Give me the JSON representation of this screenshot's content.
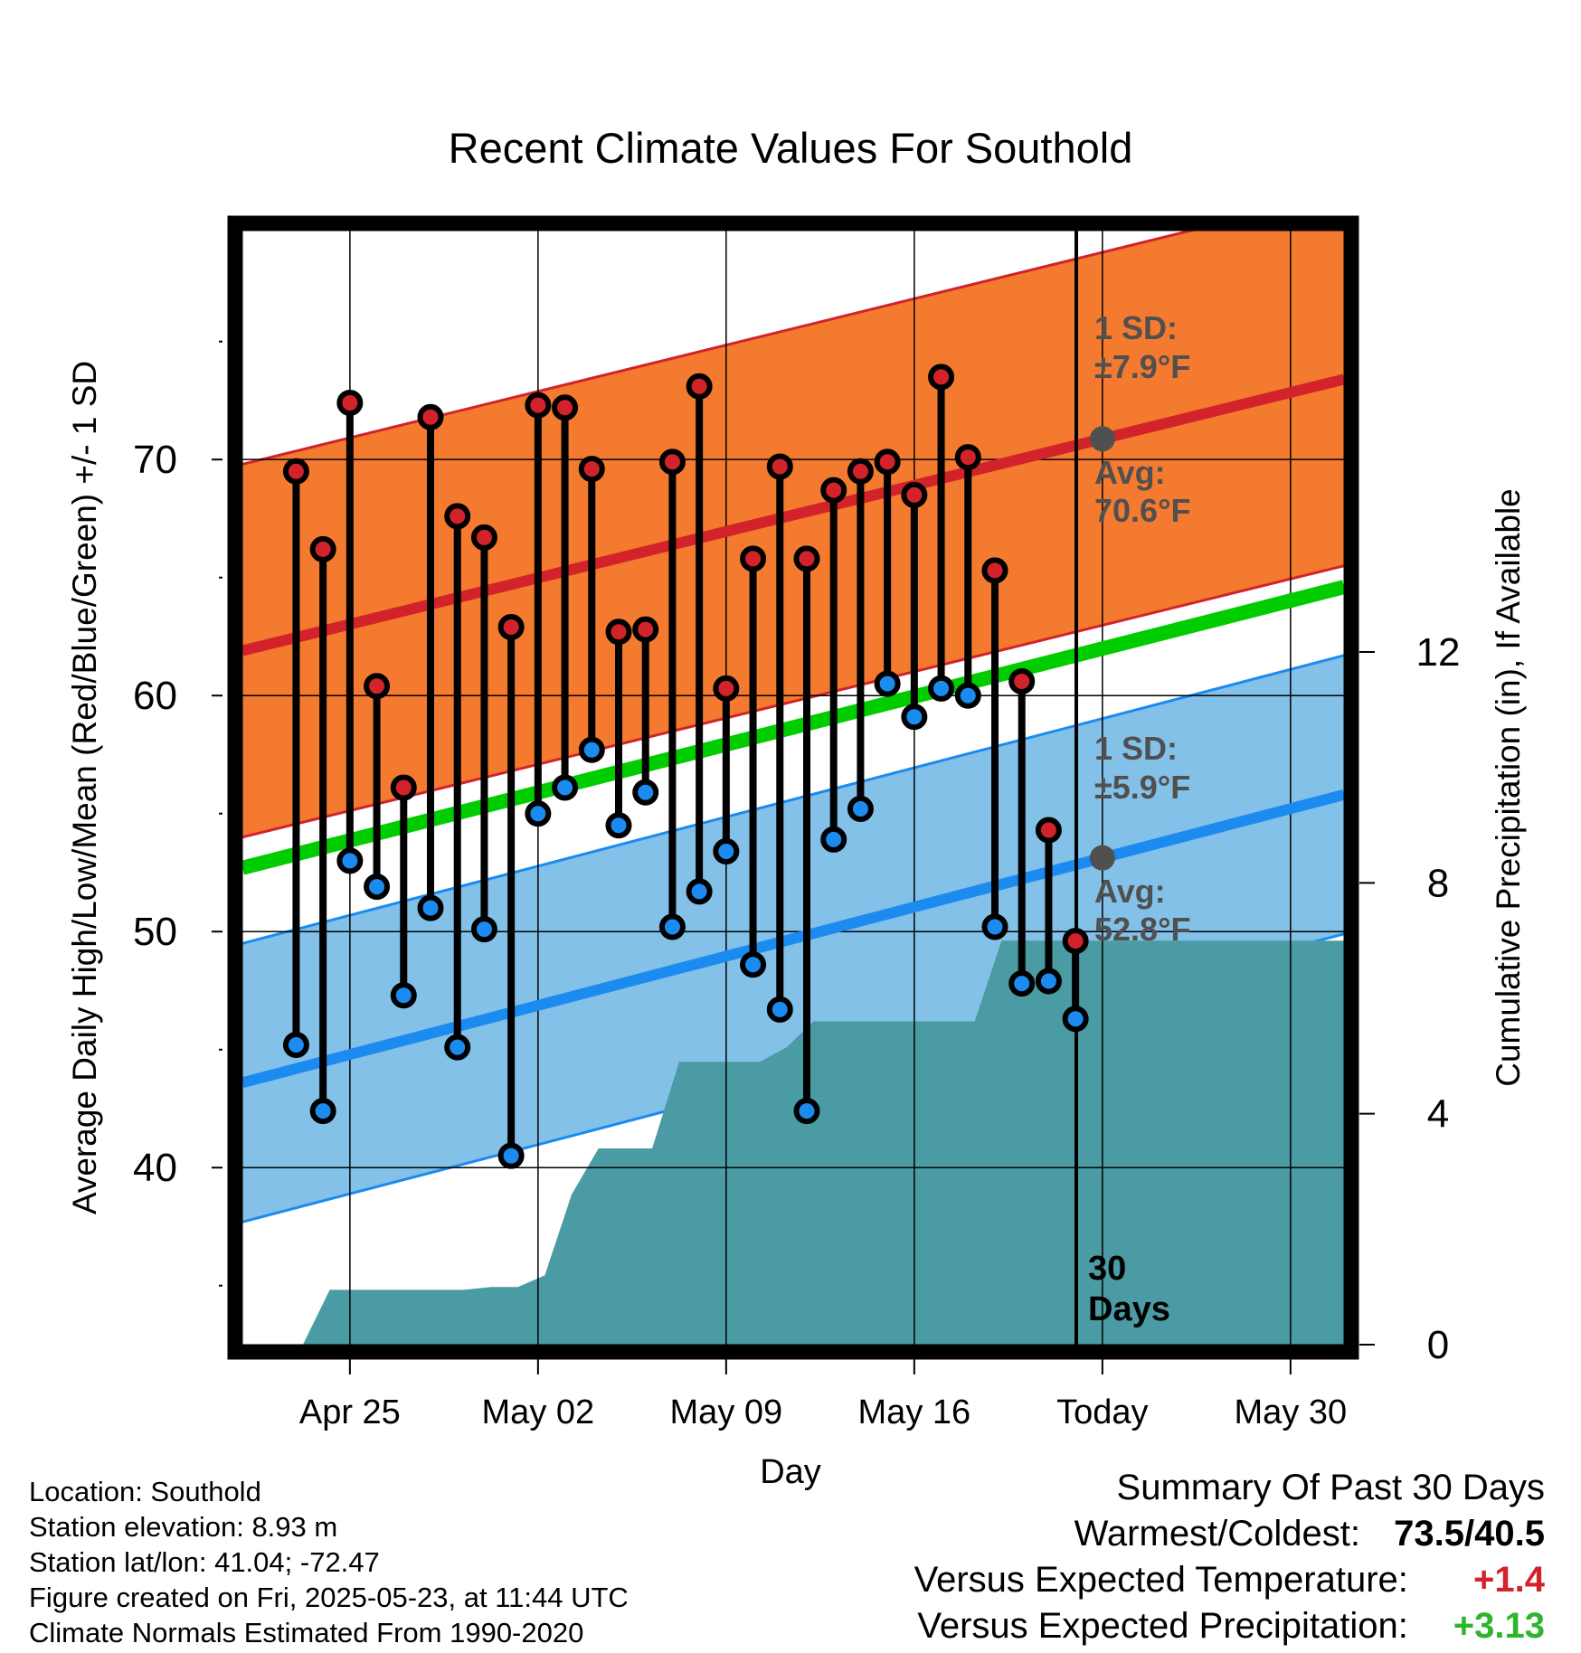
{
  "chart_data": {
    "type": "line",
    "title": "Recent Climate Values For Southold",
    "xlabel": "Day",
    "ylabel": "Average Daily High/Low/Mean (Red/Blue/Green) +/- 1 SD",
    "y2label": "Cumulative Precipitation (in), If Available",
    "x_tick_labels": [
      "Apr 25",
      "May 02",
      "May 09",
      "May 16",
      "Today",
      "May 30"
    ],
    "y_ticks": [
      "40",
      "50",
      "60",
      "70"
    ],
    "y2_ticks": [
      "0",
      "4",
      "8",
      "12"
    ],
    "ylim": [
      32.5,
      79.7
    ],
    "y2lim": [
      0,
      19.3
    ],
    "grid": true,
    "today_label": [
      "30",
      "Days"
    ],
    "high_band": {
      "sd_label": [
        "1 SD:",
        "±7.9°F"
      ],
      "avg_label": [
        "Avg:",
        "70.6°F"
      ],
      "color": "#F47A2F",
      "line_color": "#D2232A",
      "mean_start": 61.9,
      "mean_end": 73.4,
      "sd": 7.9
    },
    "low_band": {
      "sd_label": [
        "1 SD:",
        "±5.9°F"
      ],
      "avg_label": [
        "Avg:",
        "52.8°F"
      ],
      "color": "#84C1E8",
      "line_color": "#1B8BF0",
      "mean_start": 43.6,
      "mean_end": 55.8,
      "sd": 5.9
    },
    "mean_line": {
      "color": "#00CC00",
      "start": 52.7,
      "end": 64.6
    },
    "daily": {
      "dates": [
        "Apr 23",
        "Apr 24",
        "Apr 25",
        "Apr 26",
        "Apr 27",
        "Apr 28",
        "Apr 29",
        "Apr 30",
        "May 01",
        "May 02",
        "May 03",
        "May 04",
        "May 05",
        "May 06",
        "May 07",
        "May 08",
        "May 09",
        "May 10",
        "May 11",
        "May 12",
        "May 13",
        "May 14",
        "May 15",
        "May 16",
        "May 17",
        "May 18",
        "May 19",
        "May 20",
        "May 21",
        "May 22"
      ],
      "highs": [
        69.5,
        66.2,
        72.4,
        60.4,
        56.1,
        71.8,
        67.6,
        66.7,
        62.9,
        72.3,
        72.2,
        69.6,
        62.7,
        62.8,
        69.9,
        73.1,
        60.3,
        65.8,
        69.7,
        65.8,
        68.7,
        69.5,
        69.9,
        68.5,
        73.5,
        70.1,
        65.3,
        60.6,
        54.3,
        49.6
      ],
      "lows": [
        45.2,
        42.4,
        53.0,
        51.9,
        47.3,
        51.0,
        45.1,
        50.1,
        40.5,
        55.0,
        56.1,
        57.7,
        54.5,
        55.9,
        50.2,
        51.7,
        53.4,
        48.6,
        46.7,
        42.4,
        53.9,
        55.2,
        60.5,
        59.1,
        60.3,
        60.0,
        50.2,
        47.8,
        47.9,
        46.3
      ]
    },
    "precip": {
      "color": "#4A9BA3",
      "values": [
        0,
        0,
        0,
        0.95,
        0.95,
        0.95,
        0.95,
        0.95,
        0.95,
        1.0,
        1.0,
        1.2,
        2.6,
        3.4,
        3.4,
        3.4,
        4.9,
        4.9,
        4.9,
        4.9,
        5.15,
        5.6,
        5.6,
        5.6,
        5.6,
        5.6,
        5.6,
        5.6,
        7.0,
        7.0,
        7.0,
        7.0,
        7.0,
        7.0,
        7.0,
        7.0,
        7.0,
        7.0,
        7.0
      ]
    },
    "high_color": "#D2232A",
    "low_color": "#1B8BF0"
  },
  "footer": {
    "location": "Location: Southold",
    "elevation": "Station elevation: 8.93 m",
    "latlon": "Station lat/lon: 41.04; -72.47",
    "created": "Figure created on Fri, 2025-05-23, at 11:44 UTC",
    "normals": "Climate Normals Estimated From 1990-2020"
  },
  "summary": {
    "title": "Summary Of Past 30 Days",
    "warmest_label": "Warmest/Coldest:",
    "warmest": "73.5",
    "coldest": "40.5",
    "temp_label": "Versus Expected Temperature:",
    "temp_value": "+1.4",
    "temp_color": "#D2232A",
    "precip_label": "Versus Expected Precipitation:",
    "precip_value": "+3.13",
    "precip_color": "#2DB52D"
  }
}
